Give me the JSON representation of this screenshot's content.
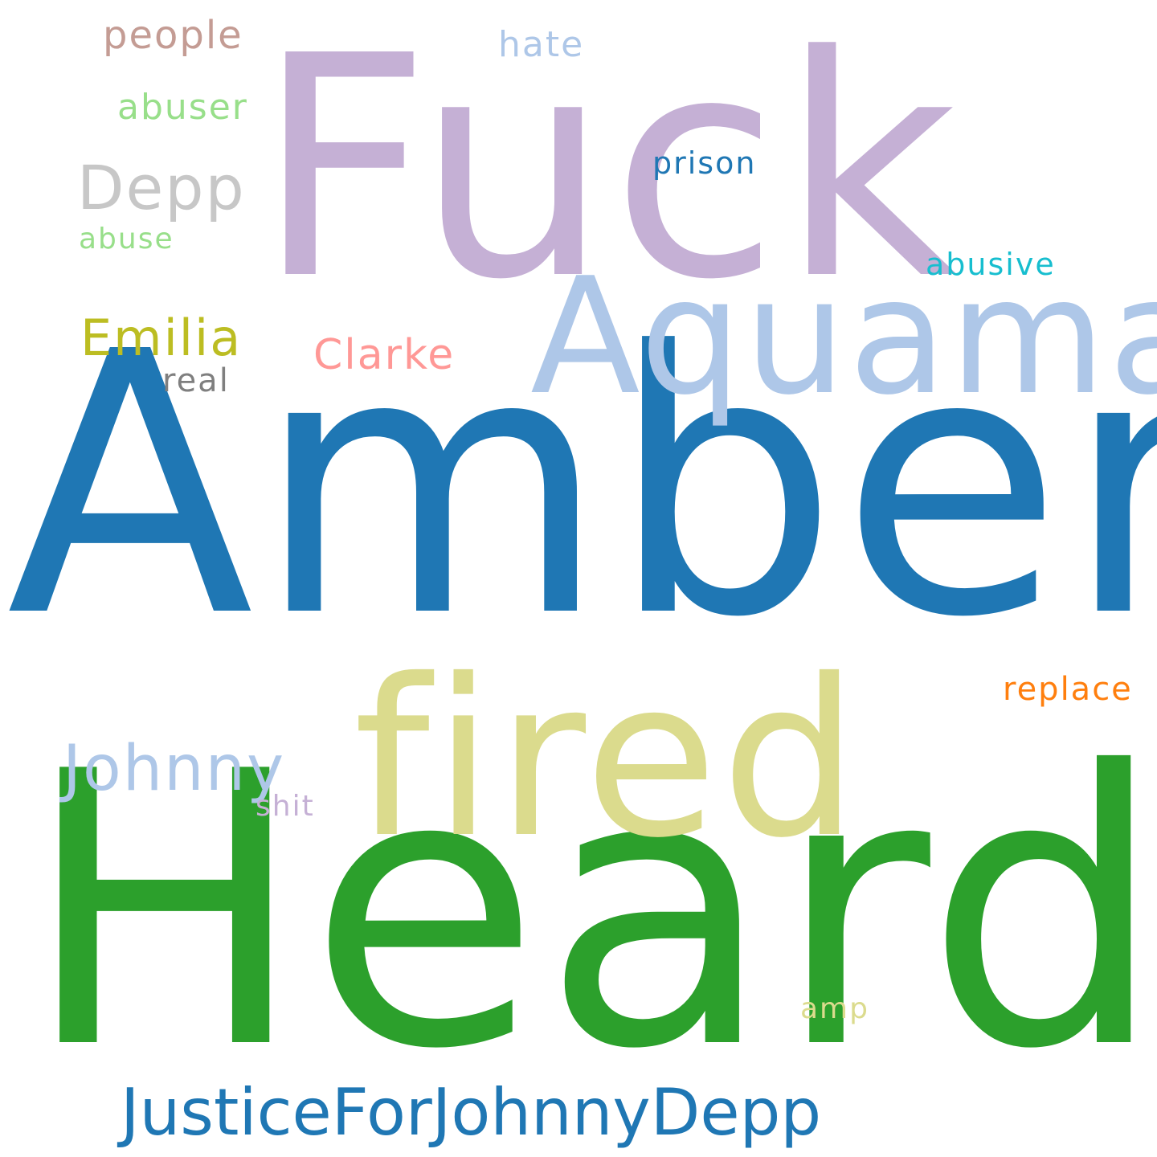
{
  "words": [
    {
      "text": "Amber",
      "color": "#1f77b4"
    },
    {
      "text": "Heard",
      "color": "#2ca02c"
    },
    {
      "text": "Fuck",
      "color": "#c5b0d5"
    },
    {
      "text": "Aquaman",
      "color": "#aec7e8"
    },
    {
      "text": "fired",
      "color": "#dbdb8d"
    },
    {
      "text": "JusticeForJohnnyDepp",
      "color": "#1f77b4"
    },
    {
      "text": "Johnny",
      "color": "#aec7e8"
    },
    {
      "text": "Depp",
      "color": "#c7c7c7"
    },
    {
      "text": "Emilia",
      "color": "#bcbd22"
    },
    {
      "text": "Clarke",
      "color": "#ff9896"
    },
    {
      "text": "people",
      "color": "#c49c94"
    },
    {
      "text": "abuser",
      "color": "#98df8a"
    },
    {
      "text": "hate",
      "color": "#aec7e8"
    },
    {
      "text": "prison",
      "color": "#1f77b4"
    },
    {
      "text": "abusive",
      "color": "#17becf"
    },
    {
      "text": "abuse",
      "color": "#98df8a"
    },
    {
      "text": "real",
      "color": "#7f7f7f"
    },
    {
      "text": "replace",
      "color": "#ff7f0e"
    },
    {
      "text": "shit",
      "color": "#c5b0d5"
    },
    {
      "text": "amp",
      "color": "#dbdb8d"
    }
  ]
}
